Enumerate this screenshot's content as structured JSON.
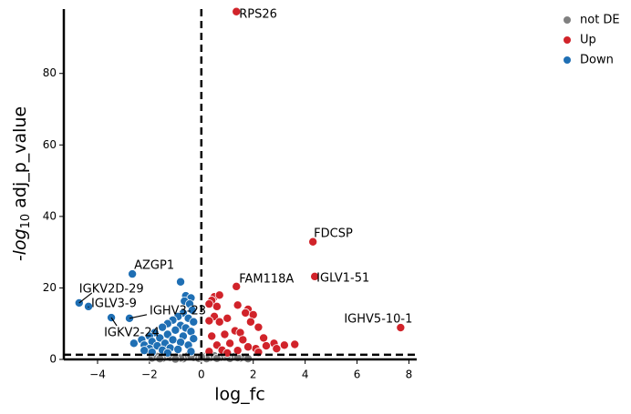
{
  "chart_data": {
    "type": "scatter",
    "xlabel": "log_fc",
    "ylabel": {
      "prefix": "-log",
      "sub": "10",
      "suffix": " adj_p_value"
    },
    "xlim": [
      -5.3,
      8.3
    ],
    "ylim": [
      0,
      98
    ],
    "xticks": [
      {
        "value": -4,
        "label": "−4"
      },
      {
        "value": -2,
        "label": "−2"
      },
      0,
      2,
      4,
      6,
      8
    ],
    "yticks": [
      0,
      20,
      40,
      60,
      80
    ],
    "thresholds": {
      "x": 0,
      "y": 1.3
    },
    "legend": "top-right",
    "series": [
      {
        "name": "not DE",
        "color": "#808080",
        "x": [
          -1.9,
          -1.7,
          -1.5,
          -1.3,
          -1.1,
          -0.9,
          -0.7,
          -0.5,
          -0.3,
          -0.1,
          0.1,
          0.3,
          0.5,
          0.7,
          0.9,
          1.1,
          1.3,
          1.5,
          1.7,
          -1.6,
          -1.2,
          -0.8,
          -0.4,
          0.2,
          0.6,
          1.0,
          1.4,
          1.8,
          -1.0,
          0.0
        ],
        "y": [
          0.4,
          0.8,
          0.3,
          1.0,
          0.5,
          0.9,
          0.2,
          1.1,
          0.6,
          0.3,
          0.8,
          0.4,
          1.0,
          0.5,
          0.7,
          0.3,
          0.9,
          0.4,
          0.6,
          0.2,
          0.6,
          0.4,
          0.9,
          0.2,
          0.3,
          1.1,
          0.5,
          0.2,
          0.1,
          0.7
        ]
      },
      {
        "name": "Up",
        "color": "#d1232a",
        "x": [
          1.35,
          4.3,
          4.37,
          1.35,
          7.68,
          0.5,
          0.7,
          0.4,
          0.3,
          1.4,
          0.6,
          1.8,
          1.7,
          2.0,
          0.5,
          1.0,
          0.3,
          0.7,
          1.9,
          2.2,
          1.3,
          1.5,
          2.4,
          0.9,
          0.4,
          1.6,
          2.8,
          3.2,
          2.9,
          3.6,
          2.1,
          1.1,
          0.6,
          1.8,
          2.5,
          0.8,
          1.4,
          0.3,
          2.2,
          1.0
        ],
        "y": [
          97.3,
          32.9,
          23.2,
          20.4,
          8.9,
          17.5,
          18,
          16.5,
          15.5,
          15.2,
          14.8,
          14,
          13,
          12.5,
          12,
          11.5,
          10.8,
          10.5,
          10.5,
          9,
          8,
          7.5,
          6,
          7,
          6.5,
          5.5,
          4.5,
          4,
          3,
          4.2,
          3,
          4.5,
          4,
          3.5,
          3.8,
          2.6,
          2.5,
          2.2,
          2,
          1.8
        ]
      },
      {
        "name": "Down",
        "color": "#1f6fb4",
        "x": [
          -2.66,
          -4.71,
          -4.35,
          -2.77,
          -3.47,
          -0.8,
          -0.6,
          -0.4,
          -0.65,
          -0.45,
          -0.35,
          -0.7,
          -0.9,
          -1.1,
          -0.5,
          -0.3,
          -1.3,
          -0.8,
          -1.5,
          -0.6,
          -1.0,
          -1.8,
          -0.4,
          -1.3,
          -2.0,
          -0.7,
          -1.6,
          -2.3,
          -1.1,
          -0.3,
          -1.9,
          -2.6,
          -1.4,
          -0.8,
          -2.2,
          -1.7,
          -0.5,
          -2.0,
          -1.2,
          -2.2,
          -1.5,
          -0.9,
          -1.9,
          -0.4,
          -1.3
        ],
        "y": [
          23.9,
          15.8,
          14.8,
          11.5,
          11.7,
          21.7,
          17.8,
          17.2,
          16.3,
          15.5,
          13.8,
          13,
          12,
          11,
          11.5,
          10.5,
          10,
          9.5,
          9,
          8.8,
          8.2,
          7.5,
          7.8,
          7,
          6.5,
          6.5,
          6,
          5.5,
          5.5,
          5.8,
          5,
          4.5,
          4.5,
          4.8,
          4,
          3.8,
          4,
          3,
          3.2,
          2.5,
          2.6,
          2.8,
          2,
          2.2,
          1.8
        ]
      }
    ],
    "annotations": [
      {
        "text": "RPS26",
        "x": 1.35,
        "y": 97.3
      },
      {
        "text": "FDCSP",
        "x": 4.3,
        "y": 32.9
      },
      {
        "text": "IGLV1-51",
        "x": 4.37,
        "y": 23.2
      },
      {
        "text": "FAM118A",
        "x": 1.35,
        "y": 20.4
      },
      {
        "text": "IGHV5-10-1",
        "x": 7.68,
        "y": 8.9
      },
      {
        "text": "AZGP1",
        "x": -2.66,
        "y": 23.9
      },
      {
        "text": "IGKV2D-29",
        "x": -4.71,
        "y": 15.8
      },
      {
        "text": "IGLV3-9",
        "x": -4.35,
        "y": 14.8
      },
      {
        "text": "IGHV3-23",
        "x": -2.77,
        "y": 11.5
      },
      {
        "text": "IGKV2-24",
        "x": -3.47,
        "y": 11.7
      }
    ]
  }
}
